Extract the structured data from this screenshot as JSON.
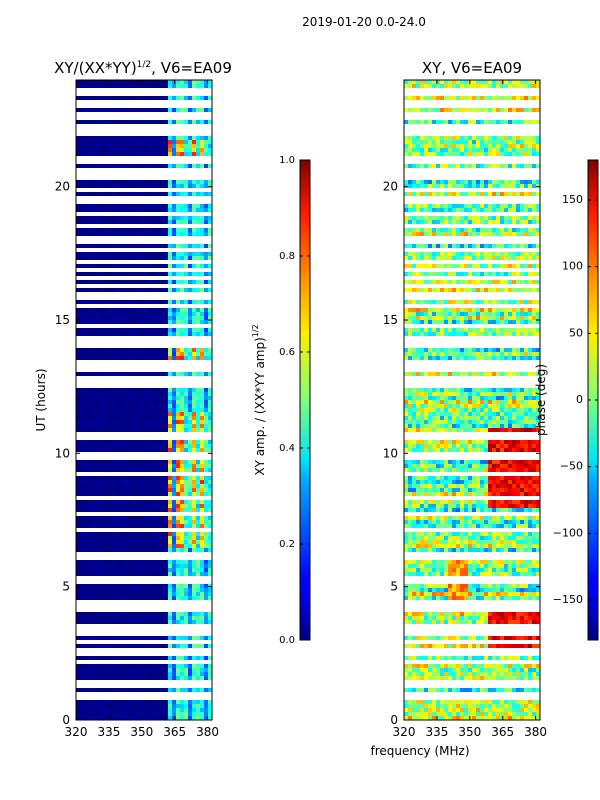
{
  "figure": {
    "suptitle": "2019-01-20 0.0-24.0",
    "shared_xlabel": "frequency (MHz)"
  },
  "chart_data": [
    {
      "type": "heatmap",
      "title": "XY/(XX*YY)",
      "title_exp": "1/2",
      "title_rest": ", V6=EA09",
      "xlabel": "",
      "ylabel": "UT (hours)",
      "xlim": [
        320,
        382
      ],
      "ylim": [
        0,
        24
      ],
      "xticks": [
        320,
        335,
        350,
        365,
        380
      ],
      "yticks": [
        0,
        5,
        10,
        15,
        20
      ],
      "colorbar": {
        "label": "XY amp. / (XX*YY amp)",
        "label_exp": "1/2",
        "range": [
          0.0,
          1.0
        ],
        "ticks": [
          "0.0",
          "0.2",
          "0.4",
          "0.6",
          "0.8",
          "1.0"
        ],
        "tick_values": [
          0.0,
          0.2,
          0.4,
          0.6,
          0.8,
          1.0
        ],
        "colormap": "jet"
      },
      "description_ranges": {
        "background_value": 0.0,
        "band_start_mhz": 362,
        "band_end_mhz": 382,
        "band_typical": [
          0.3,
          0.5
        ],
        "hot_rows_hours": [
          [
            6.5,
            11.5
          ],
          [
            13.0,
            14.0
          ],
          [
            21.0,
            21.8
          ]
        ],
        "hot_value": 0.85
      }
    },
    {
      "type": "heatmap",
      "title": "XY, V6=EA09",
      "xlabel": "",
      "ylabel": "",
      "xlim": [
        320,
        382
      ],
      "ylim": [
        0,
        24
      ],
      "xticks": [
        320,
        335,
        350,
        365,
        380
      ],
      "yticks": [
        0,
        5,
        10,
        15,
        20
      ],
      "colorbar": {
        "label": "phase (deg)",
        "range": [
          -180,
          180
        ],
        "ticks": [
          "−150",
          "−100",
          "−50",
          "0",
          "50",
          "100",
          "150"
        ],
        "tick_values": [
          -150,
          -100,
          -50,
          0,
          50,
          100,
          150
        ],
        "colormap": "jet"
      },
      "description_ranges": {
        "typical": [
          -50,
          50
        ],
        "structure": "banded horizontal phase stripes; red/orange diagonal features near 360-380 MHz at 2.5-4 h and 8-11 h"
      }
    }
  ],
  "gaps_hours": [
    0.9,
    1.0,
    1.35,
    1.4,
    2.2,
    2.55,
    2.95,
    3.3,
    3.5,
    4.2,
    4.45,
    5.25,
    6.1,
    6.25,
    7.1,
    7.7,
    8.35,
    9.2,
    9.9,
    10.65,
    12.5,
    12.75,
    13.15,
    13.35,
    14.05,
    14.25,
    14.75,
    15.55,
    15.9,
    16.3,
    16.55,
    16.9,
    17.2,
    17.6,
    18.0,
    18.5,
    19.0,
    19.5,
    19.85,
    20.3,
    20.55,
    21.0,
    21.95,
    22.2,
    22.65,
    23.1,
    23.55
  ]
}
